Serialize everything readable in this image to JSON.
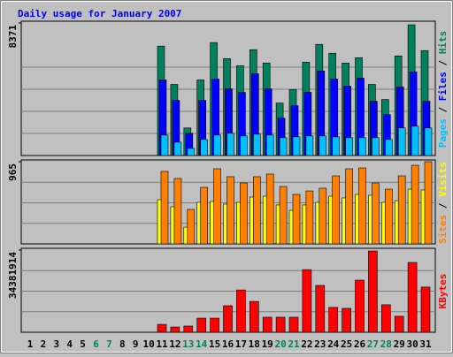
{
  "chart_data": {
    "type": "bar",
    "title": "Daily usage for January 2007",
    "categories": [
      "1",
      "2",
      "3",
      "4",
      "5",
      "6",
      "7",
      "8",
      "9",
      "10",
      "11",
      "12",
      "13",
      "14",
      "15",
      "16",
      "17",
      "18",
      "19",
      "20",
      "21",
      "22",
      "23",
      "24",
      "25",
      "26",
      "27",
      "28",
      "29",
      "30",
      "31"
    ],
    "category_colors": [
      "#000000",
      "#000000",
      "#000000",
      "#000000",
      "#000000",
      "#00805c",
      "#00805c",
      "#000000",
      "#000000",
      "#000000",
      "#000000",
      "#000000",
      "#00805c",
      "#00805c",
      "#000000",
      "#000000",
      "#000000",
      "#000000",
      "#000000",
      "#00805c",
      "#00805c",
      "#000000",
      "#000000",
      "#000000",
      "#000000",
      "#000000",
      "#00805c",
      "#00805c",
      "#000000",
      "#000000",
      "#000000"
    ],
    "legend_separator": " / ",
    "panels": [
      {
        "ylim": [
          0,
          8371
        ],
        "yticks": [
          8371
        ],
        "series": [
          {
            "name": "Hits",
            "color": "#00805c",
            "values": [
              0,
              0,
              0,
              0,
              0,
              0,
              0,
              0,
              0,
              0,
              6910,
              4494,
              1742,
              4775,
              7135,
              6123,
              5674,
              6685,
              5842,
              3314,
              4157,
              5899,
              7022,
              6461,
              5842,
              6180,
              4494,
              3539,
              6292,
              8258,
              6629
            ]
          },
          {
            "name": "Files",
            "color": "#0000ff",
            "values": [
              0,
              0,
              0,
              0,
              0,
              0,
              0,
              0,
              0,
              0,
              4775,
              3483,
              1404,
              3483,
              4831,
              4213,
              3989,
              5168,
              4213,
              2359,
              3146,
              3989,
              5337,
              4831,
              4382,
              4888,
              3427,
              2584,
              4326,
              5281,
              3427
            ]
          },
          {
            "name": "Pages",
            "color": "#00c0ff",
            "values": [
              0,
              0,
              0,
              0,
              0,
              0,
              0,
              0,
              0,
              0,
              1292,
              843,
              449,
              1011,
              1292,
              1404,
              1236,
              1348,
              1292,
              1124,
              1180,
              1236,
              1236,
              1180,
              1124,
              1124,
              1124,
              1011,
              1742,
              1854,
              1742
            ]
          }
        ]
      },
      {
        "ylim": [
          0,
          965
        ],
        "yticks": [
          965
        ],
        "series": [
          {
            "name": "Visits",
            "color": "#ffff00",
            "values": [
              0,
              0,
              0,
              0,
              0,
              0,
              0,
              0,
              0,
              0,
              519,
              436,
              197,
              488,
              498,
              467,
              488,
              550,
              560,
              457,
              394,
              457,
              488,
              560,
              540,
              581,
              571,
              488,
              508,
              643,
              633
            ]
          },
          {
            "name": "Sites",
            "color": "#ff8000",
            "values": [
              0,
              0,
              0,
              0,
              0,
              0,
              0,
              0,
              0,
              0,
              851,
              768,
              405,
              664,
              882,
              789,
              716,
              789,
              820,
              674,
              581,
              622,
              654,
              799,
              882,
              892,
              716,
              643,
              799,
              923,
              965
            ]
          }
        ]
      },
      {
        "ylim": [
          0,
          34381914
        ],
        "yticks": [
          34381914
        ],
        "series": [
          {
            "name": "KBytes",
            "color": "#ff0000",
            "values": [
              0,
              0,
              0,
              0,
              0,
              0,
              0,
              0,
              0,
              0,
              3300000,
              2200000,
              2600000,
              5900000,
              5900000,
              11100000,
              17700000,
              12900000,
              6300000,
              6300000,
              6300000,
              26200000,
              19600000,
              10400000,
              10000000,
              21800000,
              34000000,
              11500000,
              6700000,
              29200000,
              18900000
            ]
          }
        ]
      }
    ]
  }
}
